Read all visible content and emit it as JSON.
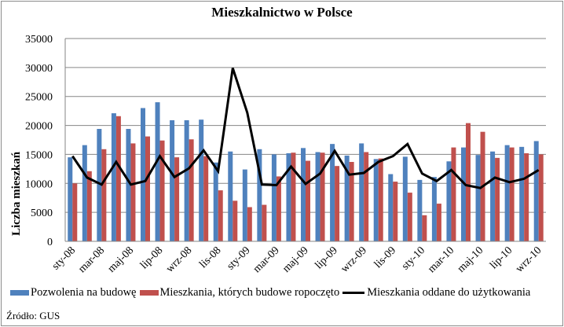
{
  "chart_data": {
    "type": "bar",
    "title": "Mieszkalnictwo w Polsce",
    "xlabel": "",
    "ylabel": "Liczba mieszkań",
    "ylim": [
      0,
      35000
    ],
    "yticks": [
      0,
      5000,
      10000,
      15000,
      20000,
      25000,
      30000,
      35000
    ],
    "grid": true,
    "legend_position": "bottom",
    "categories": [
      "sty-08",
      "lut-08",
      "mar-08",
      "kwi-08",
      "maj-08",
      "cze-08",
      "lip-08",
      "sie-08",
      "wrz-08",
      "paź-08",
      "lis-08",
      "gru-08",
      "sty-09",
      "lut-09",
      "mar-09",
      "kwi-09",
      "maj-09",
      "cze-09",
      "lip-09",
      "sie-09",
      "wrz-09",
      "paź-09",
      "lis-09",
      "gru-09",
      "sty-10",
      "lut-10",
      "mar-10",
      "kwi-10",
      "maj-10",
      "cze-10",
      "lip-10",
      "sie-10",
      "wrz-10"
    ],
    "visible_tick_labels": [
      "sty-08",
      "mar-08",
      "maj-08",
      "lip-08",
      "wrz-08",
      "lis-08",
      "sty-09",
      "mar-09",
      "maj-09",
      "lip-09",
      "wrz-09",
      "lis-09",
      "sty-10",
      "mar-10",
      "maj-10",
      "lip-10",
      "wrz-10"
    ],
    "series": [
      {
        "name": "Pozwolenia na budowę",
        "type": "bar",
        "color": "#4f81bd",
        "values": [
          14500,
          16600,
          19400,
          22100,
          19400,
          23000,
          24000,
          20900,
          20900,
          21000,
          13600,
          15500,
          12400,
          15900,
          15000,
          15200,
          16100,
          15400,
          16800,
          14800,
          16900,
          14200,
          11600,
          14600,
          10600,
          11100,
          13800,
          16200,
          14900,
          15500,
          16600,
          16300,
          17300
        ]
      },
      {
        "name": "Mieszkania, których budowę rozpoczęto",
        "type": "bar",
        "color": "#c0504d",
        "values": [
          10000,
          12100,
          15900,
          21600,
          16900,
          18100,
          17400,
          14500,
          17600,
          14700,
          8800,
          7000,
          5900,
          6300,
          11200,
          15300,
          13900,
          15300,
          13000,
          13700,
          15400,
          14300,
          10300,
          8400,
          4500,
          6500,
          16200,
          20400,
          18900,
          14400,
          16200,
          15200,
          15000
        ]
      },
      {
        "name": "Mieszkania oddane do użytkowania",
        "type": "line",
        "color": "#000000",
        "values": [
          14700,
          11000,
          9800,
          13700,
          9800,
          10400,
          14700,
          11100,
          12600,
          15700,
          12100,
          29900,
          22200,
          9800,
          9700,
          12900,
          9900,
          11700,
          15600,
          11500,
          11800,
          13700,
          14700,
          16800,
          11700,
          10400,
          12300,
          9700,
          9200,
          11000,
          10200,
          10800,
          12300
        ]
      }
    ]
  },
  "legend": {
    "items": [
      {
        "label": "Pozwolenia na budowę",
        "color": "#4f81bd"
      },
      {
        "label": "Mieszkania, których budowe ropoczęto",
        "color": "#c0504d"
      },
      {
        "label": "Mieszkania oddane do użytkowania",
        "color": "#000000"
      }
    ]
  },
  "source": "Źródło: GUS"
}
